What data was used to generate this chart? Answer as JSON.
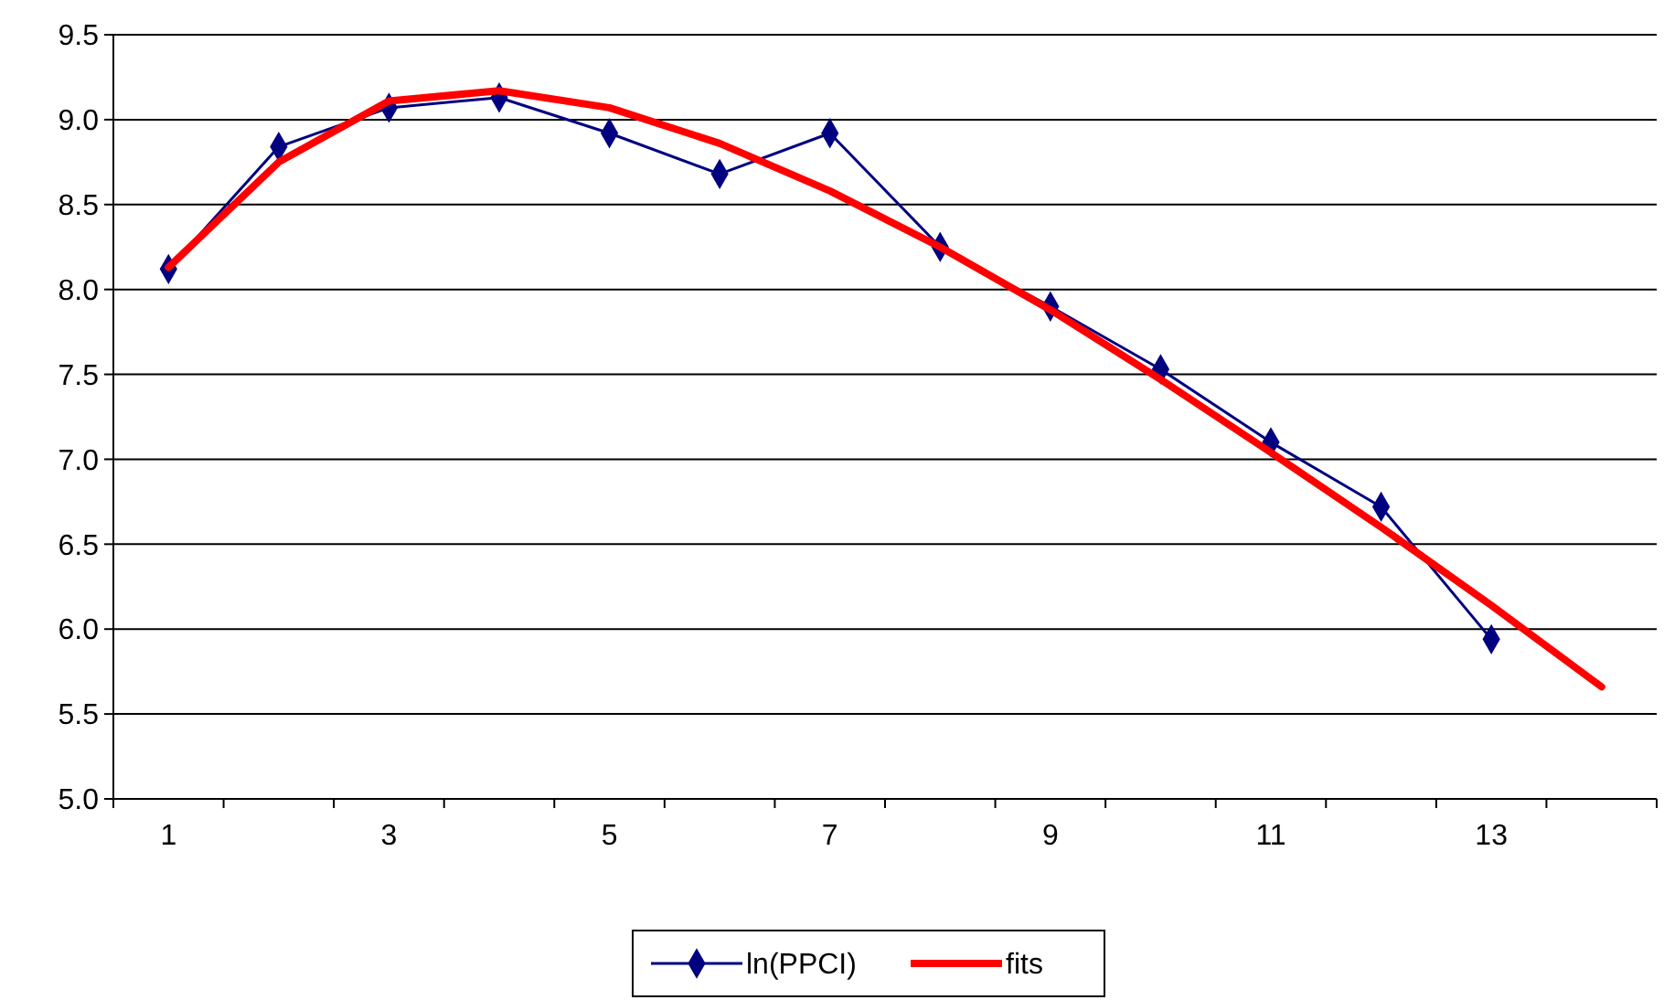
{
  "chart_data": {
    "type": "line",
    "categories": [
      "1",
      null,
      "3",
      null,
      "5",
      null,
      "7",
      null,
      "9",
      null,
      "11",
      null,
      "13",
      null
    ],
    "series": [
      {
        "name": "ln(PPCI)",
        "color": "#000080",
        "marker": "diamond",
        "values": [
          8.12,
          8.84,
          9.07,
          9.13,
          8.92,
          8.68,
          8.92,
          8.25,
          7.9,
          7.53,
          7.1,
          6.72,
          5.94,
          null
        ]
      },
      {
        "name": "fits",
        "color": "#ff0000",
        "marker": "none",
        "values": [
          8.13,
          8.75,
          9.11,
          9.17,
          9.07,
          8.86,
          8.58,
          8.25,
          7.88,
          7.47,
          7.04,
          6.6,
          6.14,
          5.66
        ]
      }
    ],
    "ylim": [
      5,
      9.5
    ],
    "yticks": [
      {
        "value": 5,
        "label": "5.0"
      },
      {
        "value": 5.5,
        "label": "5.5"
      },
      {
        "value": 6,
        "label": "6.0"
      },
      {
        "value": 6.5,
        "label": "6.5"
      },
      {
        "value": 7,
        "label": "7.0"
      },
      {
        "value": 7.5,
        "label": "7.5"
      },
      {
        "value": 8,
        "label": "8.0"
      },
      {
        "value": 8.5,
        "label": "8.5"
      },
      {
        "value": 9,
        "label": "9.0"
      },
      {
        "value": 9.5,
        "label": "9.5"
      }
    ],
    "grid": "y",
    "legend": "bottom"
  }
}
